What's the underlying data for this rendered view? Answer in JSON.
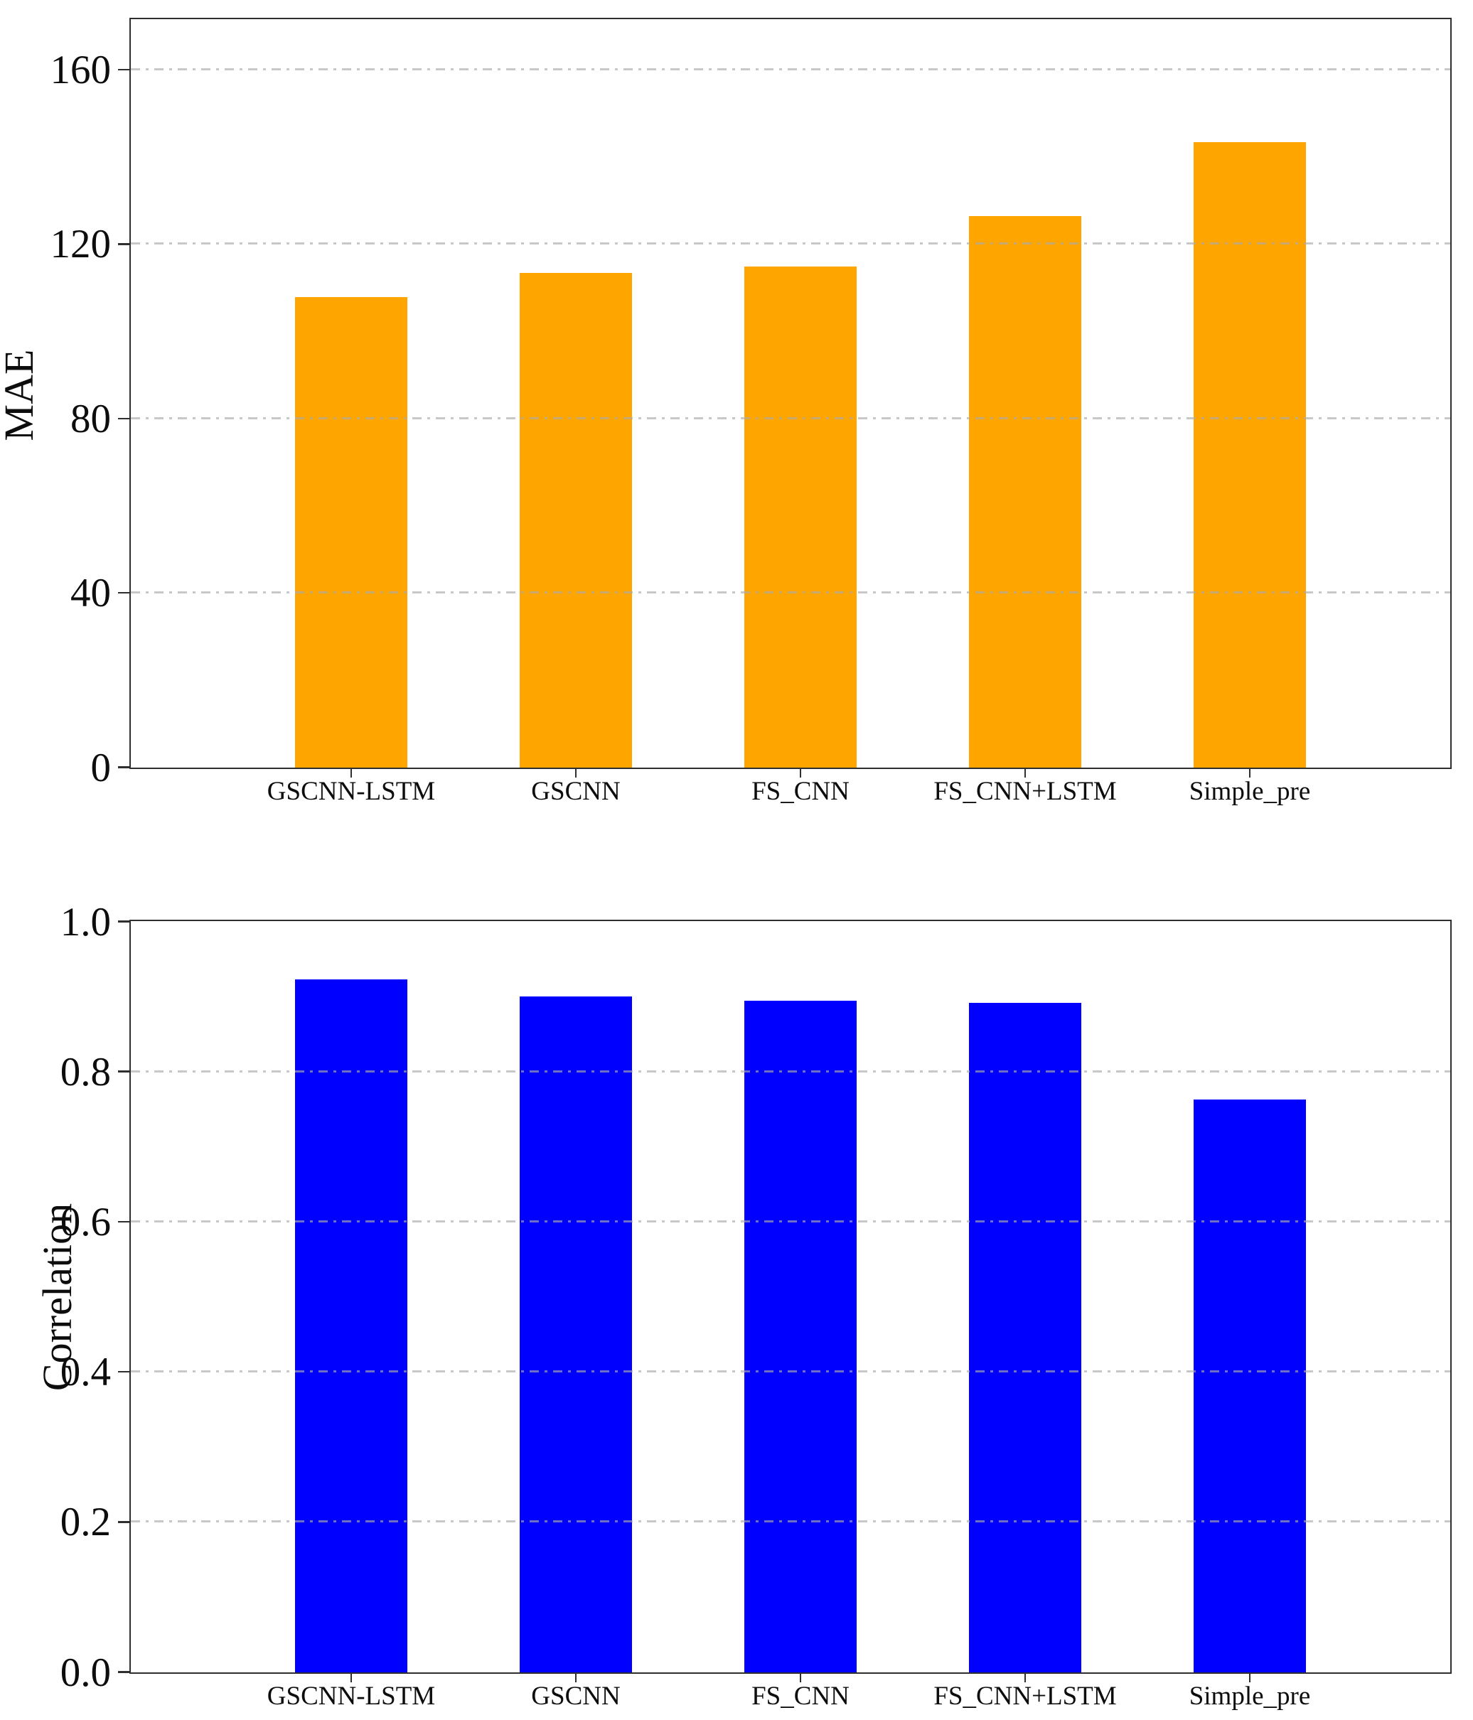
{
  "page": {
    "background": "#ffffff",
    "description": "Two vertically stacked bar charts comparing models"
  },
  "chart_data": [
    {
      "type": "bar",
      "title": "",
      "ylabel": "MAE",
      "xlabel": "",
      "categories": [
        "GSCNN-LSTM",
        "GSCNN",
        "FS_CNN",
        "FS_CNN+LSTM",
        "Simple_pre"
      ],
      "values": [
        108,
        113.5,
        115,
        126.5,
        143.5
      ],
      "bar_color": "#ffa500",
      "ylim": [
        0,
        171.5
      ],
      "yticks": [
        0,
        40,
        80,
        120,
        160
      ],
      "ytick_labels": [
        "0",
        "40",
        "80",
        "120",
        "160"
      ],
      "grid": "horizontal-dashed",
      "grid_color": "#c9c9c9",
      "legend": "none"
    },
    {
      "type": "bar",
      "title": "",
      "ylabel": "Correlation",
      "xlabel": "",
      "categories": [
        "GSCNN-LSTM",
        "GSCNN",
        "FS_CNN",
        "FS_CNN+LSTM",
        "Simple_pre"
      ],
      "values": [
        0.923,
        0.901,
        0.895,
        0.892,
        0.763
      ],
      "bar_color": "#0000ff",
      "ylim": [
        0,
        1.0
      ],
      "yticks": [
        0,
        0.2,
        0.4,
        0.6,
        0.8,
        1.0
      ],
      "ytick_labels": [
        "0.0",
        "0.2",
        "0.4",
        "0.6",
        "0.8",
        "1.0"
      ],
      "grid": "horizontal-dashed",
      "grid_color": "#c9c9c9",
      "legend": "none"
    }
  ]
}
